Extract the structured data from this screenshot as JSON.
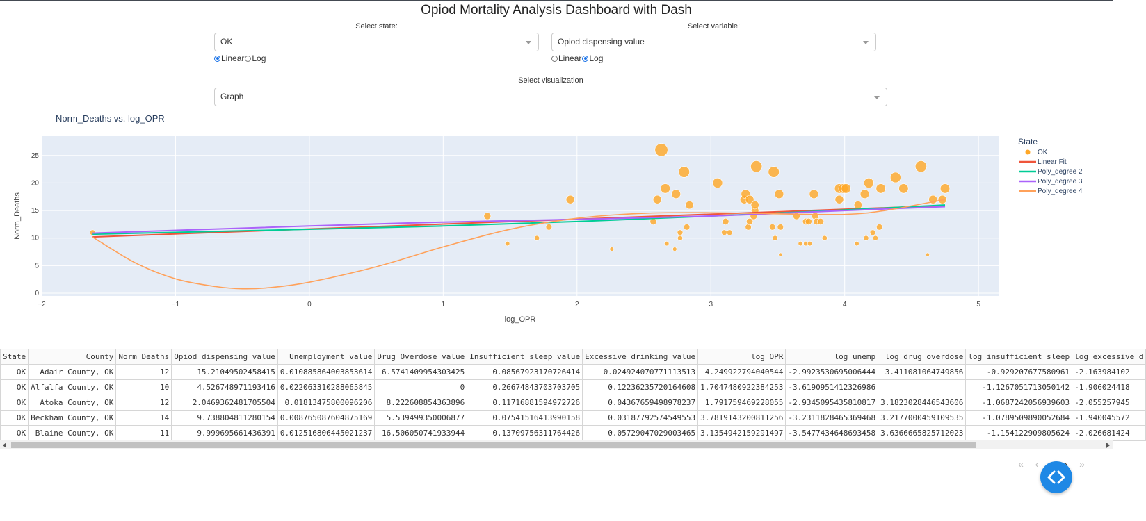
{
  "header": {
    "title": "Opiod Mortality Analysis Dashboard with Dash"
  },
  "controls": {
    "state_label": "Select state:",
    "state_value": "OK",
    "state_scale": {
      "options": [
        "Linear",
        "Log"
      ],
      "selected": "Linear"
    },
    "variable_label": "Select variable:",
    "variable_value": "Opiod dispensing value",
    "variable_scale": {
      "options": [
        "Linear",
        "Log"
      ],
      "selected": "Log"
    },
    "viz_label": "Select visualization",
    "viz_value": "Graph"
  },
  "colors": {
    "plot_bg": "#E5ECF6",
    "points": "#FFA726",
    "linear_fit": "#EF553B",
    "poly2": "#00CC96",
    "poly3": "#AB63FA",
    "poly4": "#FFA15A",
    "fab": "#1E88E5"
  },
  "chart_data": {
    "type": "scatter",
    "title": "Norm_Deaths vs. log_OPR",
    "xlabel": "log_OPR",
    "ylabel": "Norm_Deaths",
    "xlim": [
      -2,
      5.15
    ],
    "ylim": [
      -0.5,
      28.5
    ],
    "xticks": [
      -2,
      -1,
      0,
      1,
      2,
      3,
      4,
      5
    ],
    "yticks": [
      0,
      5,
      10,
      15,
      20,
      25
    ],
    "grid": true,
    "legend": {
      "title": "State",
      "placement": "right",
      "entries": [
        "OK",
        "Linear Fit",
        "Poly_degree 2",
        "Poly_degree 3",
        "Poly_degree 4"
      ]
    },
    "points": [
      {
        "x": -1.62,
        "y": 11,
        "s": 11
      },
      {
        "x": 1.33,
        "y": 14,
        "s": 14
      },
      {
        "x": 1.48,
        "y": 9,
        "s": 9
      },
      {
        "x": 1.7,
        "y": 10,
        "s": 10
      },
      {
        "x": 1.79,
        "y": 12,
        "s": 12
      },
      {
        "x": 1.95,
        "y": 17,
        "s": 17
      },
      {
        "x": 2.26,
        "y": 8,
        "s": 8
      },
      {
        "x": 2.57,
        "y": 13,
        "s": 13
      },
      {
        "x": 2.63,
        "y": 26,
        "s": 26
      },
      {
        "x": 2.6,
        "y": 17,
        "s": 17
      },
      {
        "x": 2.66,
        "y": 19,
        "s": 19
      },
      {
        "x": 2.67,
        "y": 9,
        "s": 9
      },
      {
        "x": 2.73,
        "y": 8,
        "s": 8
      },
      {
        "x": 2.74,
        "y": 18,
        "s": 18
      },
      {
        "x": 2.77,
        "y": 11,
        "s": 11
      },
      {
        "x": 2.77,
        "y": 10,
        "s": 10
      },
      {
        "x": 2.8,
        "y": 22,
        "s": 22
      },
      {
        "x": 2.82,
        "y": 12,
        "s": 12
      },
      {
        "x": 2.84,
        "y": 16,
        "s": 16
      },
      {
        "x": 3.05,
        "y": 20,
        "s": 20
      },
      {
        "x": 3.1,
        "y": 11,
        "s": 11
      },
      {
        "x": 3.11,
        "y": 13,
        "s": 13
      },
      {
        "x": 3.14,
        "y": 11,
        "s": 11
      },
      {
        "x": 3.25,
        "y": 17,
        "s": 17
      },
      {
        "x": 3.26,
        "y": 18,
        "s": 18
      },
      {
        "x": 3.29,
        "y": 17,
        "s": 17
      },
      {
        "x": 3.28,
        "y": 12,
        "s": 12
      },
      {
        "x": 3.29,
        "y": 13,
        "s": 13
      },
      {
        "x": 3.32,
        "y": 14,
        "s": 14
      },
      {
        "x": 3.33,
        "y": 15,
        "s": 15
      },
      {
        "x": 3.33,
        "y": 16,
        "s": 16
      },
      {
        "x": 3.34,
        "y": 23,
        "s": 23
      },
      {
        "x": 3.47,
        "y": 22,
        "s": 22
      },
      {
        "x": 3.46,
        "y": 12,
        "s": 12
      },
      {
        "x": 3.48,
        "y": 10,
        "s": 10
      },
      {
        "x": 3.51,
        "y": 18,
        "s": 18
      },
      {
        "x": 3.52,
        "y": 12,
        "s": 12
      },
      {
        "x": 3.52,
        "y": 7,
        "s": 7
      },
      {
        "x": 3.64,
        "y": 14,
        "s": 14
      },
      {
        "x": 3.67,
        "y": 9,
        "s": 9
      },
      {
        "x": 3.71,
        "y": 9,
        "s": 9
      },
      {
        "x": 3.71,
        "y": 13,
        "s": 13
      },
      {
        "x": 3.73,
        "y": 13,
        "s": 13
      },
      {
        "x": 3.74,
        "y": 9,
        "s": 9
      },
      {
        "x": 3.77,
        "y": 18,
        "s": 18
      },
      {
        "x": 3.78,
        "y": 14,
        "s": 14
      },
      {
        "x": 3.79,
        "y": 13,
        "s": 13
      },
      {
        "x": 3.82,
        "y": 13,
        "s": 13
      },
      {
        "x": 3.85,
        "y": 10,
        "s": 10
      },
      {
        "x": 3.96,
        "y": 17,
        "s": 17
      },
      {
        "x": 3.96,
        "y": 19,
        "s": 19
      },
      {
        "x": 3.99,
        "y": 19,
        "s": 19
      },
      {
        "x": 4.01,
        "y": 19,
        "s": 19
      },
      {
        "x": 4.09,
        "y": 9,
        "s": 9
      },
      {
        "x": 4.1,
        "y": 16,
        "s": 16
      },
      {
        "x": 4.15,
        "y": 18,
        "s": 18
      },
      {
        "x": 4.16,
        "y": 10,
        "s": 10
      },
      {
        "x": 4.18,
        "y": 20,
        "s": 20
      },
      {
        "x": 4.21,
        "y": 11,
        "s": 11
      },
      {
        "x": 4.23,
        "y": 10,
        "s": 10
      },
      {
        "x": 4.26,
        "y": 12,
        "s": 12
      },
      {
        "x": 4.27,
        "y": 19,
        "s": 19
      },
      {
        "x": 4.38,
        "y": 21,
        "s": 21
      },
      {
        "x": 4.44,
        "y": 19,
        "s": 19
      },
      {
        "x": 4.57,
        "y": 23,
        "s": 23
      },
      {
        "x": 4.62,
        "y": 7,
        "s": 7
      },
      {
        "x": 4.66,
        "y": 17,
        "s": 17
      },
      {
        "x": 4.73,
        "y": 17,
        "s": 17
      },
      {
        "x": 4.75,
        "y": 19,
        "s": 19
      }
    ],
    "fits": [
      {
        "name": "Linear Fit",
        "x": [
          -1.62,
          4.75
        ],
        "y": [
          10.2,
          15.9
        ]
      },
      {
        "name": "Poly_degree 2",
        "x": [
          -1.62,
          0,
          1,
          2,
          3,
          4,
          4.75
        ],
        "y": [
          10.7,
          11.6,
          12.2,
          13.0,
          14.0,
          15.1,
          16.0
        ]
      },
      {
        "name": "Poly_degree 3",
        "x": [
          -1.62,
          0,
          1,
          2,
          3,
          4,
          4.75
        ],
        "y": [
          10.9,
          12.2,
          12.9,
          13.4,
          14.0,
          15.0,
          15.7
        ]
      },
      {
        "name": "Poly_degree 4",
        "x": [
          -1.62,
          -1.3,
          -1.0,
          -0.7,
          -0.5,
          -0.3,
          0,
          0.5,
          1.0,
          1.5,
          2.0,
          2.5,
          3.0,
          3.5,
          4.0,
          4.3,
          4.75
        ],
        "y": [
          10.2,
          5.5,
          2.6,
          1.2,
          0.8,
          1.0,
          2.0,
          4.8,
          8.4,
          11.6,
          13.6,
          14.5,
          14.6,
          14.4,
          14.3,
          15.0,
          17.0
        ]
      }
    ]
  },
  "table": {
    "columns": [
      "State",
      "County",
      "Norm_Deaths",
      "Opiod dispensing value",
      "Unemployment value",
      "Drug Overdose value",
      "Insufficient sleep value",
      "Excessive drinking value",
      "log_OPR",
      "log_unemp",
      "log_drug_overdose",
      "log_insufficient_sleep",
      "log_excessive_d"
    ],
    "rows": [
      [
        "OK",
        "Adair County, OK",
        "12",
        "15.21049502458415",
        "0.010885864003853614",
        "6.5741409954303425",
        "0.08567923170726414",
        "0.024924070771113513",
        "4.249922794040544",
        "-2.9923530695006444",
        "3.411081064749856",
        "-0.929207677580961",
        "-2.163984102"
      ],
      [
        "OK",
        "Alfalfa County, OK",
        "10",
        "4.526748971193416",
        "0.022063310288065845",
        "0",
        "0.26674843703703705",
        "0.12236235720164608",
        "1.7047480922384253",
        "-3.6190951412326986",
        "",
        "-1.1267051713050142",
        "-1.906024418"
      ],
      [
        "OK",
        "Atoka County, OK",
        "12",
        "2.0469362481705504",
        "0.01813475800096206",
        "8.222608854363896",
        "0.11716881594972726",
        "0.04367659498978237",
        "1.791759469228055",
        "-2.9345095435810817",
        "3.1823028446543606",
        "-1.0687242056939603",
        "-2.055257945"
      ],
      [
        "OK",
        "Beckham County, OK",
        "14",
        "9.738804811280154",
        "0.008765087604875169",
        "5.539499350006877",
        "0.07541516413990158",
        "0.03187792574549553",
        "3.7819143200811256",
        "-3.2311828465369468",
        "3.2177000459109535",
        "-1.0789509890052684",
        "-1.940045572"
      ],
      [
        "OK",
        "Blaine County, OK",
        "11",
        "9.999695661436391",
        "0.012516806445021237",
        "16.506050741933944",
        "0.13709756311764426",
        "0.05729047029003465",
        "3.1354942159291497",
        "-3.5477434648693458",
        "3.6366665825712023",
        "-1.154122909805624",
        "-2.026681424"
      ]
    ]
  },
  "pagination": {
    "first": "«",
    "prev": "‹",
    "next": "›",
    "last": "»"
  }
}
